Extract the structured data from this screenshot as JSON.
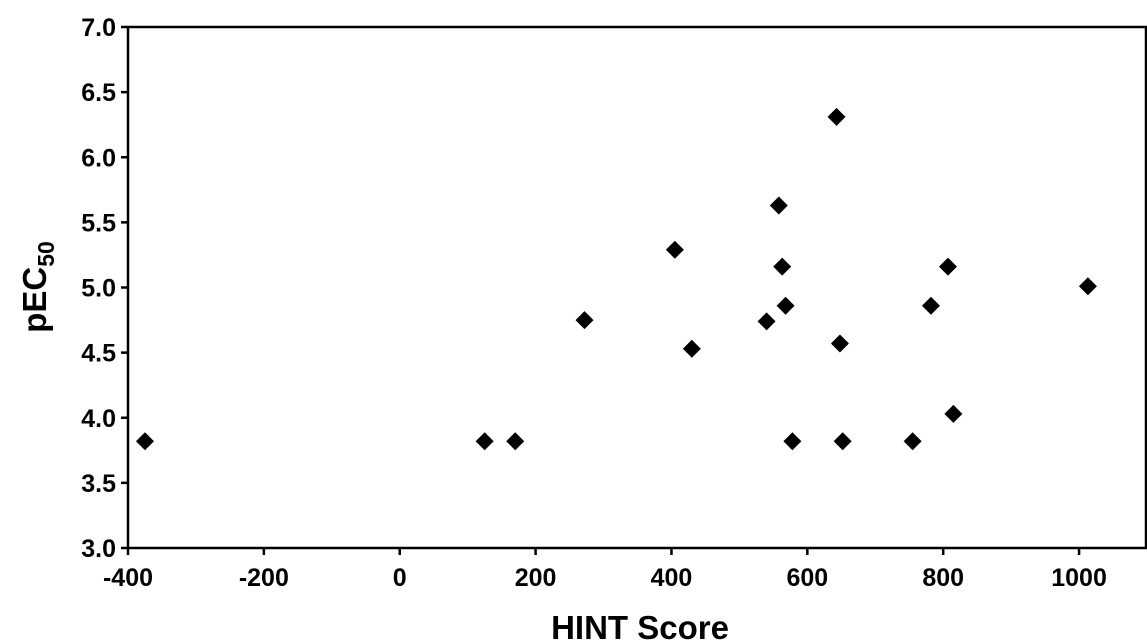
{
  "chart_data": {
    "type": "scatter",
    "xlabel": "HINT Score",
    "ylabel": {
      "main": "pEC",
      "sub": "50"
    },
    "xlim": [
      -400,
      1100
    ],
    "ylim": [
      3.0,
      7.0
    ],
    "x_ticks": [
      -400,
      -200,
      0,
      200,
      400,
      600,
      800,
      1000
    ],
    "y_ticks": [
      3.0,
      3.5,
      4.0,
      4.5,
      5.0,
      5.5,
      6.0,
      6.5,
      7.0
    ],
    "y_tick_labels": [
      "3.0",
      "3.5",
      "4.0",
      "4.5",
      "5.0",
      "5.5",
      "6.0",
      "6.5",
      "7.0"
    ],
    "marker": "diamond",
    "marker_color": "#000000",
    "grid": false,
    "points": [
      {
        "x": -375,
        "y": 3.82
      },
      {
        "x": 125,
        "y": 3.82
      },
      {
        "x": 170,
        "y": 3.82
      },
      {
        "x": 272,
        "y": 4.75
      },
      {
        "x": 405,
        "y": 5.29
      },
      {
        "x": 430,
        "y": 4.53
      },
      {
        "x": 540,
        "y": 4.74
      },
      {
        "x": 558,
        "y": 5.63
      },
      {
        "x": 563,
        "y": 5.16
      },
      {
        "x": 568,
        "y": 4.86
      },
      {
        "x": 578,
        "y": 3.82
      },
      {
        "x": 643,
        "y": 6.31
      },
      {
        "x": 648,
        "y": 4.57
      },
      {
        "x": 652,
        "y": 3.82
      },
      {
        "x": 755,
        "y": 3.82
      },
      {
        "x": 782,
        "y": 4.86
      },
      {
        "x": 807,
        "y": 5.16
      },
      {
        "x": 815,
        "y": 4.03
      },
      {
        "x": 1013,
        "y": 5.01
      }
    ]
  }
}
